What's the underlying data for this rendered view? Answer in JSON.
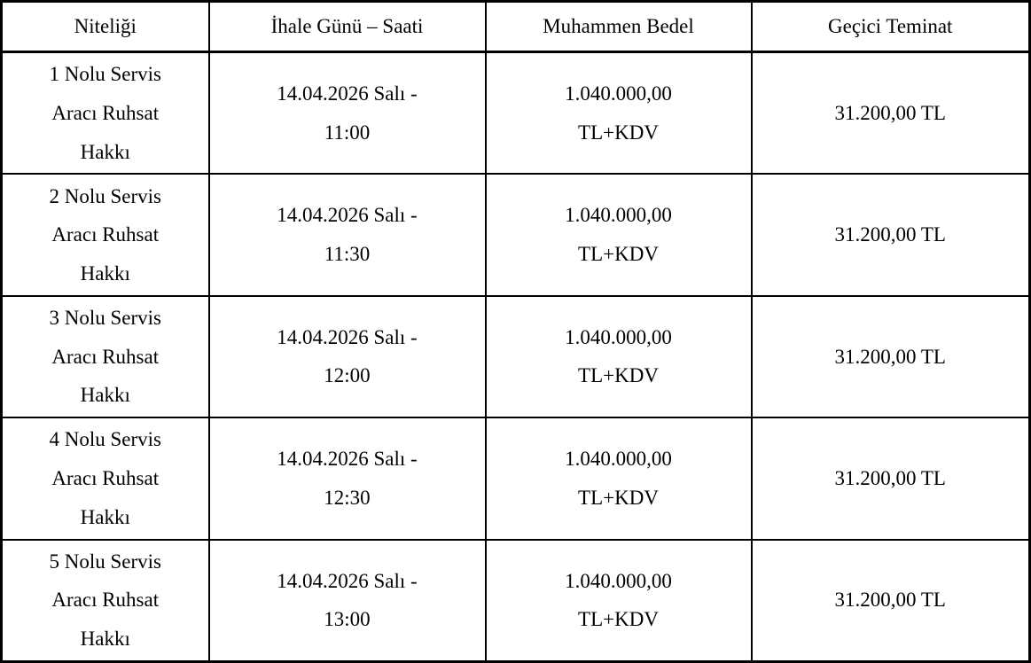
{
  "table": {
    "columns": [
      {
        "key": "niteligi",
        "label": "Niteliği"
      },
      {
        "key": "ihale",
        "label": "İhale Günü – Saati"
      },
      {
        "key": "bedel",
        "label": "Muhammen Bedel"
      },
      {
        "key": "teminat",
        "label": "Geçici Teminat"
      }
    ],
    "rows": [
      {
        "niteligi": [
          "1 Nolu Servis",
          "Aracı Ruhsat",
          "Hakkı"
        ],
        "ihale": [
          "14.04.2026 Salı -",
          "11:00"
        ],
        "bedel": [
          "1.040.000,00",
          "TL+KDV"
        ],
        "teminat": [
          "31.200,00 TL"
        ]
      },
      {
        "niteligi": [
          "2 Nolu Servis",
          "Aracı Ruhsat",
          "Hakkı"
        ],
        "ihale": [
          "14.04.2026 Salı -",
          "11:30"
        ],
        "bedel": [
          "1.040.000,00",
          "TL+KDV"
        ],
        "teminat": [
          "31.200,00 TL"
        ]
      },
      {
        "niteligi": [
          "3 Nolu Servis",
          "Aracı Ruhsat",
          "Hakkı"
        ],
        "ihale": [
          "14.04.2026 Salı -",
          "12:00"
        ],
        "bedel": [
          "1.040.000,00",
          "TL+KDV"
        ],
        "teminat": [
          "31.200,00 TL"
        ]
      },
      {
        "niteligi": [
          "4 Nolu Servis",
          "Aracı Ruhsat",
          "Hakkı"
        ],
        "ihale": [
          "14.04.2026 Salı -",
          "12:30"
        ],
        "bedel": [
          "1.040.000,00",
          "TL+KDV"
        ],
        "teminat": [
          "31.200,00 TL"
        ]
      },
      {
        "niteligi": [
          "5 Nolu Servis",
          "Aracı Ruhsat",
          "Hakkı"
        ],
        "ihale": [
          "14.04.2026 Salı -",
          "13:00"
        ],
        "bedel": [
          "1.040.000,00",
          "TL+KDV"
        ],
        "teminat": [
          "31.200,00 TL"
        ]
      }
    ],
    "colors": {
      "border": "#000000",
      "text": "#000000",
      "background": "#ffffff"
    }
  }
}
